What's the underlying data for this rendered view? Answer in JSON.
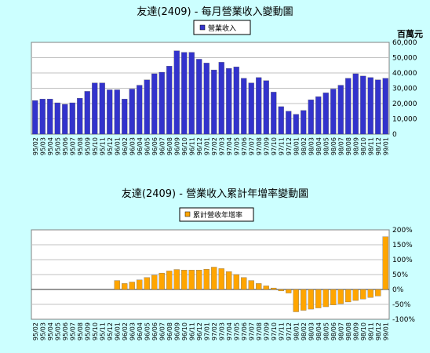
{
  "chart_data": [
    {
      "type": "bar",
      "title": "友達(2409) - 每月營業收入變動圖",
      "legend": "營業收入",
      "unit_label": "百萬元",
      "legend_placement": "top-center",
      "bar_color": "#3333cc",
      "ylim": [
        0,
        60000
      ],
      "yticks": [
        "0",
        "10,000",
        "20,000",
        "30,000",
        "40,000",
        "50,000",
        "60,000"
      ],
      "categories": [
        "95/02",
        "95/03",
        "95/04",
        "95/05",
        "95/06",
        "95/07",
        "95/08",
        "95/09",
        "95/10",
        "95/11",
        "95/12",
        "96/01",
        "96/02",
        "96/03",
        "96/04",
        "96/05",
        "96/06",
        "96/07",
        "96/08",
        "96/09",
        "96/10",
        "96/11",
        "96/12",
        "97/01",
        "97/02",
        "97/03",
        "97/04",
        "97/05",
        "97/06",
        "97/07",
        "97/08",
        "97/09",
        "97/10",
        "97/11",
        "97/12",
        "98/01",
        "98/02",
        "98/03",
        "98/04",
        "98/05",
        "98/06",
        "98/07",
        "98/08",
        "98/09",
        "98/10",
        "98/11",
        "98/12",
        "99/01"
      ],
      "values": [
        22000,
        23000,
        23000,
        20500,
        19500,
        20500,
        23500,
        28000,
        33500,
        33500,
        29000,
        29000,
        23000,
        29500,
        32000,
        35500,
        39500,
        40500,
        44500,
        54500,
        53500,
        53500,
        49000,
        46500,
        42000,
        47000,
        43000,
        44000,
        36500,
        33500,
        37000,
        35000,
        27500,
        18000,
        15000,
        13000,
        15500,
        22500,
        24500,
        27000,
        29500,
        32000,
        36500,
        39500,
        38000,
        37000,
        35500,
        36500
      ]
    },
    {
      "type": "bar",
      "title": "友達(2409) -  營業收入累計年增率變動圖",
      "legend": "累計營收年增率",
      "legend_placement": "top-center",
      "bar_color": "#ffa500",
      "ylim": [
        -100,
        200
      ],
      "yticks": [
        "-100%",
        "-50%",
        "0%",
        "50%",
        "100%",
        "150%",
        "200%"
      ],
      "categories": [
        "95/02",
        "95/03",
        "95/04",
        "95/05",
        "95/06",
        "95/07",
        "95/08",
        "95/09",
        "95/10",
        "95/11",
        "95/12",
        "96/01",
        "96/02",
        "96/03",
        "96/04",
        "96/05",
        "96/06",
        "96/07",
        "96/08",
        "96/09",
        "96/10",
        "96/11",
        "96/12",
        "97/01",
        "97/02",
        "97/03",
        "97/04",
        "97/05",
        "97/06",
        "97/07",
        "97/08",
        "97/09",
        "97/10",
        "97/11",
        "97/12",
        "98/01",
        "98/02",
        "98/03",
        "98/04",
        "98/05",
        "98/06",
        "98/07",
        "98/08",
        "98/09",
        "98/10",
        "98/11",
        "98/12",
        "99/01"
      ],
      "values": [
        0,
        0,
        0,
        0,
        0,
        0,
        0,
        0,
        0,
        0,
        0,
        30,
        20,
        25,
        32,
        40,
        48,
        55,
        62,
        67,
        65,
        65,
        65,
        68,
        75,
        70,
        60,
        50,
        40,
        30,
        20,
        12,
        5,
        -5,
        -12,
        -75,
        -70,
        -66,
        -62,
        -58,
        -52,
        -48,
        -42,
        -37,
        -32,
        -27,
        -22,
        177
      ]
    }
  ]
}
